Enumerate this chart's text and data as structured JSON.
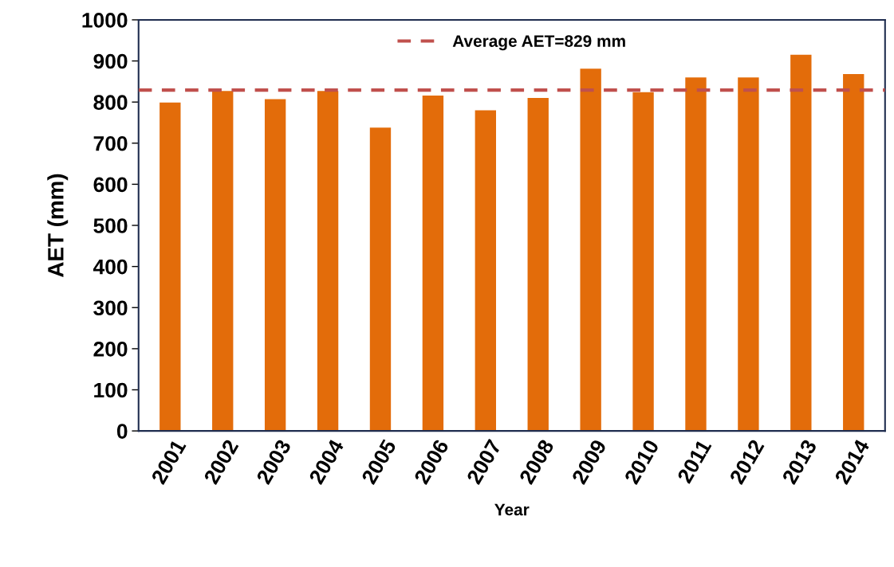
{
  "chart_data": {
    "type": "bar",
    "xlabel": "Year",
    "ylabel": "AET (mm)",
    "categories": [
      "2001",
      "2002",
      "2003",
      "2004",
      "2005",
      "2006",
      "2007",
      "2008",
      "2009",
      "2010",
      "2011",
      "2012",
      "2013",
      "2014"
    ],
    "values": [
      799,
      827,
      807,
      827,
      738,
      816,
      780,
      810,
      881,
      824,
      860,
      860,
      915,
      868
    ],
    "color": "#e36c0a",
    "ylim": [
      0,
      1000
    ],
    "yticks": [
      0,
      100,
      200,
      300,
      400,
      500,
      600,
      700,
      800,
      900,
      1000
    ],
    "ref_lines": [
      {
        "axis": "y",
        "value": 829,
        "label": "Average AET=829 mm",
        "color": "#c0504d",
        "line_style": "dashed"
      }
    ],
    "grid": false,
    "legend": "top"
  }
}
